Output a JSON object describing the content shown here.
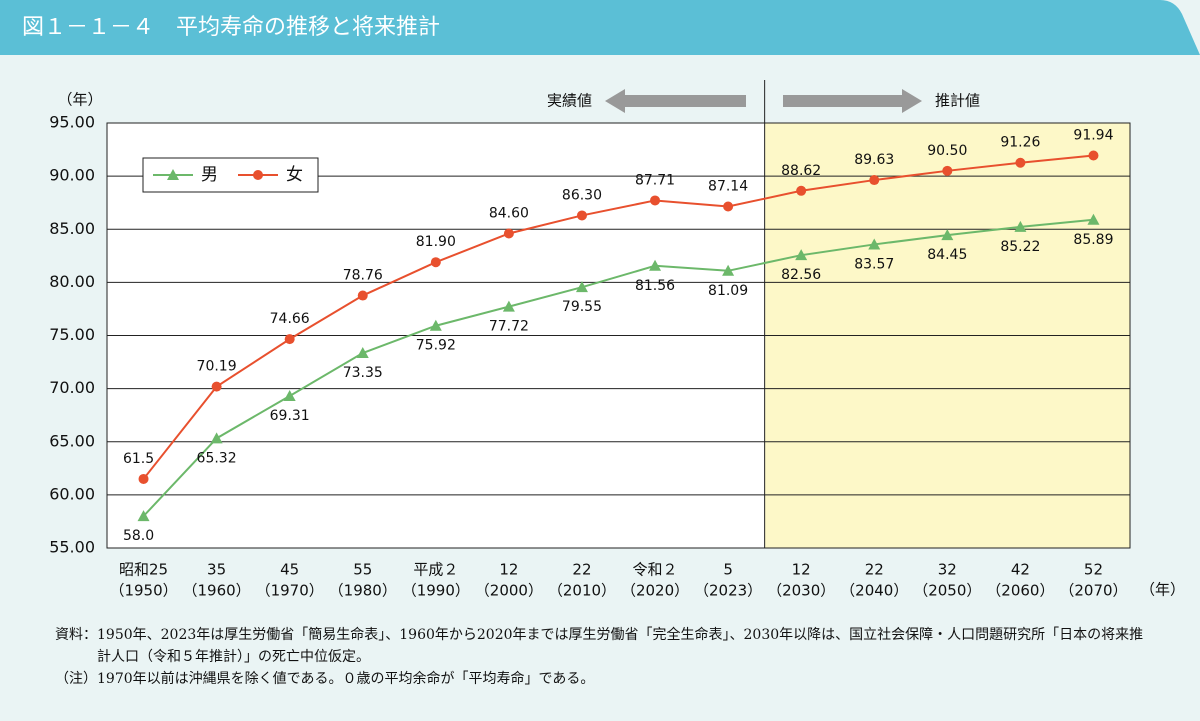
{
  "chart_data": {
    "type": "line",
    "title": "図１－１－４　平均寿命の推移と将来推計",
    "y_unit": "（年）",
    "x_unit": "（年）",
    "actual_label": "実績値",
    "projection_label": "推計値",
    "projection_start": 9,
    "categories": [
      [
        "昭和25",
        "（1950）"
      ],
      [
        "35",
        "（1960）"
      ],
      [
        "45",
        "（1970）"
      ],
      [
        "55",
        "（1980）"
      ],
      [
        "平成２",
        "（1990）"
      ],
      [
        "12",
        "（2000）"
      ],
      [
        "22",
        "（2010）"
      ],
      [
        "令和２",
        "（2020）"
      ],
      [
        "5",
        "（2023）"
      ],
      [
        "12",
        "（2030）"
      ],
      [
        "22",
        "（2040）"
      ],
      [
        "32",
        "（2050）"
      ],
      [
        "42",
        "（2060）"
      ],
      [
        "52",
        "（2070）"
      ]
    ],
    "series": [
      {
        "name": "男",
        "color": "#6cb86a",
        "marker": "triangle",
        "values": [
          58.0,
          65.32,
          69.31,
          73.35,
          75.92,
          77.72,
          79.55,
          81.56,
          81.09,
          82.56,
          83.57,
          84.45,
          85.22,
          85.89
        ],
        "value_labels": [
          "58.0",
          "65.32",
          "69.31",
          "73.35",
          "75.92",
          "77.72",
          "79.55",
          "81.56",
          "81.09",
          "82.56",
          "83.57",
          "84.45",
          "85.22",
          "85.89"
        ]
      },
      {
        "name": "女",
        "color": "#e8502e",
        "marker": "circle",
        "values": [
          61.5,
          70.19,
          74.66,
          78.76,
          81.9,
          84.6,
          86.3,
          87.71,
          87.14,
          88.62,
          89.63,
          90.5,
          91.26,
          91.94
        ],
        "value_labels": [
          "61.5",
          "70.19",
          "74.66",
          "78.76",
          "81.90",
          "84.60",
          "86.30",
          "87.71",
          "87.14",
          "88.62",
          "89.63",
          "90.50",
          "91.26",
          "91.94"
        ]
      }
    ],
    "ylim": [
      55,
      95
    ],
    "yticks": [
      {
        "value": 55,
        "label": "55.00"
      },
      {
        "value": 60,
        "label": "60.00"
      },
      {
        "value": 65,
        "label": "65.00"
      },
      {
        "value": 70,
        "label": "70.00"
      },
      {
        "value": 75,
        "label": "75.00"
      },
      {
        "value": 80,
        "label": "80.00"
      },
      {
        "value": 85,
        "label": "85.00"
      },
      {
        "value": 90,
        "label": "90.00"
      },
      {
        "value": 95,
        "label": "95.00"
      }
    ],
    "grid": true,
    "notes": [
      {
        "label": "資料：",
        "text": "1950年、2023年は厚生労働省「簡易生命表」、1960年から2020年までは厚生労働省「完全生命表」、2030年以降は、国立社会保障・人口問題研究所「日本の将来推計人口（令和５年推計）」の死亡中位仮定。"
      },
      {
        "label": "（注）",
        "text": "1970年以前は沖縄県を除く値である。０歳の平均余命が「平均寿命」である。"
      }
    ]
  }
}
